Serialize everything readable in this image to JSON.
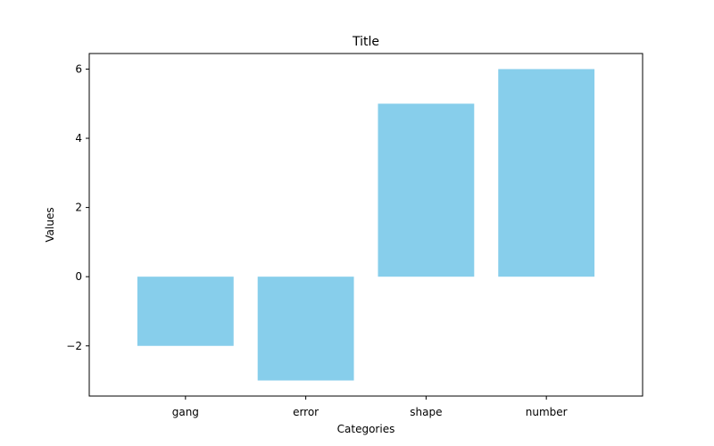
{
  "chart_data": {
    "type": "bar",
    "title": "Title",
    "xlabel": "Categories",
    "ylabel": "Values",
    "categories": [
      "gang",
      "error",
      "shape",
      "number"
    ],
    "values": [
      -2,
      -3,
      5,
      6
    ],
    "ylim": [
      -3.45,
      6.45
    ],
    "yticks": [
      -2,
      0,
      2,
      4,
      6
    ],
    "ytick_labels": [
      "−2",
      "0",
      "2",
      "4",
      "6"
    ],
    "grid": false,
    "legend": "none",
    "bar_color": "#87ceeb"
  }
}
